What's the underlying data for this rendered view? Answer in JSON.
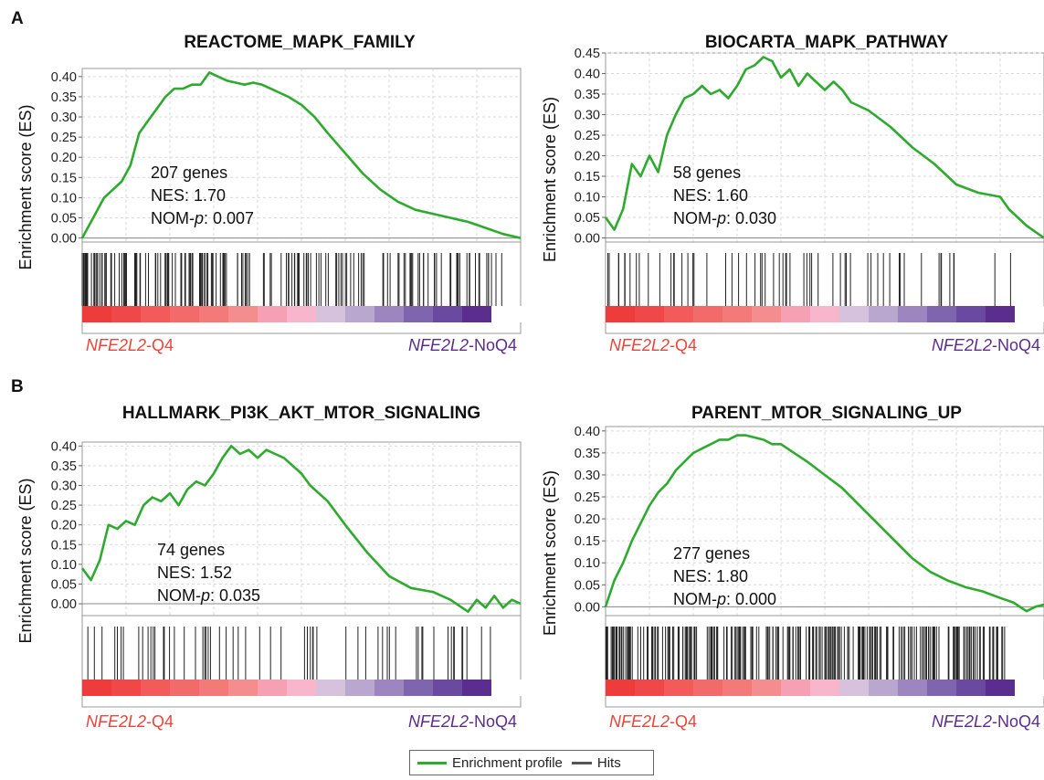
{
  "panel_labels": {
    "a": "A",
    "b": "B"
  },
  "legend": {
    "profile": "Enrichment profile",
    "hits": "Hits"
  },
  "colors": {
    "profile": "#2eaa2e",
    "hits": "#222222",
    "q4_label": "#e8453c",
    "noq4_label": "#5b2d8e"
  },
  "chart_data": [
    {
      "type": "line",
      "title": "REACTOME_MAPK_FAMILY",
      "ylabel": "Enrichment score (ES)",
      "ylim": [
        -0.01,
        0.42
      ],
      "yticks": [
        "0.00",
        "0.05",
        "0.10",
        "0.15",
        "0.20",
        "0.25",
        "0.30",
        "0.35",
        "0.40"
      ],
      "annotation": [
        "207 genes",
        "NES: 1.70",
        "NOM-p: 0.007"
      ],
      "left_label": "NFE2L2-Q4",
      "right_label": "NFE2L2-NoQ4",
      "x": [
        0,
        0.01,
        0.03,
        0.05,
        0.07,
        0.09,
        0.11,
        0.13,
        0.15,
        0.17,
        0.19,
        0.21,
        0.23,
        0.25,
        0.27,
        0.29,
        0.31,
        0.33,
        0.35,
        0.37,
        0.39,
        0.41,
        0.43,
        0.45,
        0.47,
        0.5,
        0.53,
        0.56,
        0.6,
        0.64,
        0.68,
        0.72,
        0.76,
        0.8,
        0.84,
        0.88,
        0.92,
        0.96,
        1.0
      ],
      "values": [
        0.0,
        0.02,
        0.06,
        0.1,
        0.12,
        0.14,
        0.18,
        0.26,
        0.29,
        0.32,
        0.35,
        0.37,
        0.37,
        0.38,
        0.38,
        0.41,
        0.4,
        0.39,
        0.385,
        0.38,
        0.385,
        0.38,
        0.37,
        0.36,
        0.35,
        0.33,
        0.3,
        0.26,
        0.21,
        0.16,
        0.12,
        0.09,
        0.07,
        0.06,
        0.05,
        0.04,
        0.025,
        0.01,
        0.0
      ],
      "hit_density": "early"
    },
    {
      "type": "line",
      "title": "BIOCARTA_MAPK_PATHWAY",
      "ylabel": "Enrichment score (ES)",
      "ylim": [
        -0.01,
        0.45
      ],
      "yticks": [
        "0.00",
        "0.05",
        "0.10",
        "0.15",
        "0.20",
        "0.25",
        "0.30",
        "0.35",
        "0.40",
        "0.45"
      ],
      "annotation": [
        "58 genes",
        "NES: 1.60",
        "NOM-p: 0.030"
      ],
      "left_label": "NFE2L2-Q4",
      "right_label": "NFE2L2-NoQ4",
      "x": [
        0,
        0.02,
        0.04,
        0.06,
        0.08,
        0.1,
        0.12,
        0.14,
        0.16,
        0.18,
        0.2,
        0.22,
        0.24,
        0.26,
        0.28,
        0.3,
        0.32,
        0.34,
        0.36,
        0.38,
        0.4,
        0.42,
        0.44,
        0.46,
        0.48,
        0.5,
        0.52,
        0.54,
        0.56,
        0.58,
        0.6,
        0.65,
        0.7,
        0.75,
        0.8,
        0.85,
        0.9,
        0.92,
        0.94,
        0.96,
        1.0
      ],
      "values": [
        0.05,
        0.02,
        0.07,
        0.18,
        0.15,
        0.2,
        0.16,
        0.25,
        0.3,
        0.34,
        0.35,
        0.37,
        0.35,
        0.36,
        0.34,
        0.37,
        0.41,
        0.42,
        0.44,
        0.43,
        0.39,
        0.41,
        0.37,
        0.4,
        0.38,
        0.36,
        0.38,
        0.36,
        0.33,
        0.32,
        0.31,
        0.27,
        0.22,
        0.18,
        0.13,
        0.11,
        0.1,
        0.07,
        0.05,
        0.03,
        0.0
      ],
      "hit_density": "sparse"
    },
    {
      "type": "line",
      "title": "HALLMARK_PI3K_AKT_MTOR_SIGNALING",
      "ylabel": "Enrichment score (ES)",
      "ylim": [
        -0.03,
        0.41
      ],
      "yticks": [
        "0.00",
        "0.05",
        "0.10",
        "0.15",
        "0.20",
        "0.25",
        "0.30",
        "0.35",
        "0.40"
      ],
      "annotation": [
        "74 genes",
        "NES: 1.52",
        "NOM-p: 0.035"
      ],
      "left_label": "NFE2L2-Q4",
      "right_label": "NFE2L2-NoQ4",
      "x": [
        0,
        0.02,
        0.04,
        0.06,
        0.08,
        0.1,
        0.12,
        0.14,
        0.16,
        0.18,
        0.2,
        0.22,
        0.24,
        0.26,
        0.28,
        0.3,
        0.32,
        0.34,
        0.36,
        0.38,
        0.4,
        0.42,
        0.44,
        0.46,
        0.48,
        0.5,
        0.52,
        0.56,
        0.6,
        0.65,
        0.7,
        0.75,
        0.8,
        0.84,
        0.88,
        0.9,
        0.92,
        0.94,
        0.96,
        0.98,
        1.0
      ],
      "values": [
        0.09,
        0.06,
        0.11,
        0.2,
        0.19,
        0.21,
        0.2,
        0.25,
        0.27,
        0.26,
        0.28,
        0.25,
        0.29,
        0.31,
        0.3,
        0.33,
        0.37,
        0.4,
        0.38,
        0.39,
        0.37,
        0.39,
        0.38,
        0.37,
        0.35,
        0.33,
        0.3,
        0.26,
        0.2,
        0.13,
        0.07,
        0.04,
        0.03,
        0.01,
        -0.02,
        0.01,
        -0.01,
        0.02,
        -0.01,
        0.01,
        0.0
      ],
      "hit_density": "sparse"
    },
    {
      "type": "line",
      "title": "PARENT_MTOR_SIGNALING_UP",
      "ylabel": "Enrichment score (ES)",
      "ylim": [
        -0.02,
        0.41
      ],
      "yticks": [
        "0.00",
        "0.05",
        "0.10",
        "0.15",
        "0.20",
        "0.25",
        "0.30",
        "0.35",
        "0.40"
      ],
      "annotation": [
        "277 genes",
        "NES: 1.80",
        "NOM-p: 0.000"
      ],
      "left_label": "NFE2L2-Q4",
      "right_label": "NFE2L2-NoQ4",
      "x": [
        0,
        0.02,
        0.04,
        0.06,
        0.08,
        0.1,
        0.12,
        0.14,
        0.16,
        0.18,
        0.2,
        0.22,
        0.24,
        0.26,
        0.28,
        0.3,
        0.32,
        0.34,
        0.36,
        0.38,
        0.4,
        0.43,
        0.46,
        0.5,
        0.54,
        0.58,
        0.62,
        0.66,
        0.7,
        0.74,
        0.78,
        0.82,
        0.86,
        0.9,
        0.93,
        0.96,
        0.98,
        1.0
      ],
      "values": [
        0.0,
        0.06,
        0.1,
        0.15,
        0.19,
        0.23,
        0.26,
        0.28,
        0.31,
        0.33,
        0.35,
        0.36,
        0.37,
        0.38,
        0.38,
        0.39,
        0.39,
        0.385,
        0.38,
        0.37,
        0.37,
        0.35,
        0.33,
        0.3,
        0.27,
        0.23,
        0.19,
        0.15,
        0.11,
        0.08,
        0.06,
        0.045,
        0.035,
        0.02,
        0.01,
        -0.01,
        0.0,
        0.005
      ],
      "hit_density": "dense"
    }
  ]
}
